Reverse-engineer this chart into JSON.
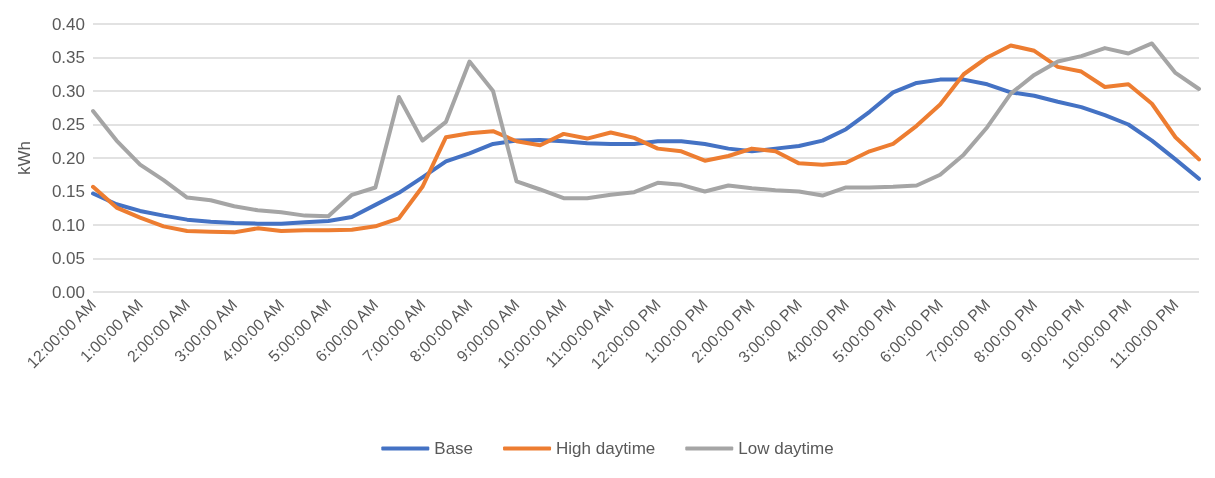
{
  "chart_data": {
    "type": "line",
    "ylabel": "kWh",
    "categories": [
      "12:00:00 AM",
      null,
      "1:00:00 AM",
      null,
      "2:00:00 AM",
      null,
      "3:00:00 AM",
      null,
      "4:00:00 AM",
      null,
      "5:00:00 AM",
      null,
      "6:00:00 AM",
      null,
      "7:00:00 AM",
      null,
      "8:00:00 AM",
      null,
      "9:00:00 AM",
      null,
      "10:00:00 AM",
      null,
      "11:00:00 AM",
      null,
      "12:00:00 PM",
      null,
      "1:00:00 PM",
      null,
      "2:00:00 PM",
      null,
      "3:00:00 PM",
      null,
      "4:00:00 PM",
      null,
      "5:00:00 PM",
      null,
      "6:00:00 PM",
      null,
      "7:00:00 PM",
      null,
      "8:00:00 PM",
      null,
      "9:00:00 PM",
      null,
      "10:00:00 PM",
      null,
      "11:00:00 PM",
      null
    ],
    "series": [
      {
        "name": "Base",
        "color": "#4472c4",
        "values": [
          0.147,
          0.131,
          0.121,
          0.114,
          0.108,
          0.105,
          0.103,
          0.102,
          0.102,
          0.104,
          0.106,
          0.112,
          0.13,
          0.148,
          0.171,
          0.195,
          0.207,
          0.221,
          0.226,
          0.227,
          0.225,
          0.222,
          0.221,
          0.221,
          0.225,
          0.225,
          0.221,
          0.214,
          0.21,
          0.214,
          0.218,
          0.226,
          0.243,
          0.269,
          0.298,
          0.312,
          0.317,
          0.317,
          0.31,
          0.298,
          0.293,
          0.284,
          0.276,
          0.264,
          0.25,
          0.226,
          0.198,
          0.169
        ]
      },
      {
        "name": "High daytime",
        "color": "#ed7d31",
        "values": [
          0.157,
          0.126,
          0.111,
          0.098,
          0.091,
          0.09,
          0.089,
          0.095,
          0.091,
          0.092,
          0.092,
          0.093,
          0.098,
          0.11,
          0.157,
          0.231,
          0.237,
          0.24,
          0.225,
          0.219,
          0.236,
          0.229,
          0.238,
          0.23,
          0.214,
          0.21,
          0.196,
          0.203,
          0.214,
          0.21,
          0.192,
          0.19,
          0.193,
          0.21,
          0.221,
          0.248,
          0.28,
          0.325,
          0.35,
          0.368,
          0.36,
          0.336,
          0.329,
          0.306,
          0.31,
          0.281,
          0.231,
          0.198
        ]
      },
      {
        "name": "Low daytime",
        "color": "#a5a5a5",
        "values": [
          0.27,
          0.226,
          0.19,
          0.167,
          0.141,
          0.137,
          0.128,
          0.122,
          0.119,
          0.114,
          0.113,
          0.145,
          0.156,
          0.291,
          0.226,
          0.254,
          0.344,
          0.3,
          0.165,
          0.153,
          0.14,
          0.14,
          0.145,
          0.149,
          0.163,
          0.16,
          0.15,
          0.159,
          0.155,
          0.152,
          0.15,
          0.144,
          0.156,
          0.156,
          0.157,
          0.159,
          0.175,
          0.205,
          0.246,
          0.296,
          0.324,
          0.344,
          0.352,
          0.364,
          0.356,
          0.371,
          0.327,
          0.303
        ]
      }
    ],
    "ylim": [
      0,
      0.4
    ],
    "yticks": [
      {
        "value": 0,
        "label": "0.00"
      },
      {
        "value": 0.05,
        "label": "0.05"
      },
      {
        "value": 0.1,
        "label": "0.10"
      },
      {
        "value": 0.15,
        "label": "0.15"
      },
      {
        "value": 0.2,
        "label": "0.20"
      },
      {
        "value": 0.25,
        "label": "0.25"
      },
      {
        "value": 0.3,
        "label": "0.30"
      },
      {
        "value": 0.35,
        "label": "0.35"
      },
      {
        "value": 0.4,
        "label": "0.40"
      }
    ],
    "grid": "y",
    "legend": "bottom",
    "marker": "none",
    "line_style": "solid"
  }
}
